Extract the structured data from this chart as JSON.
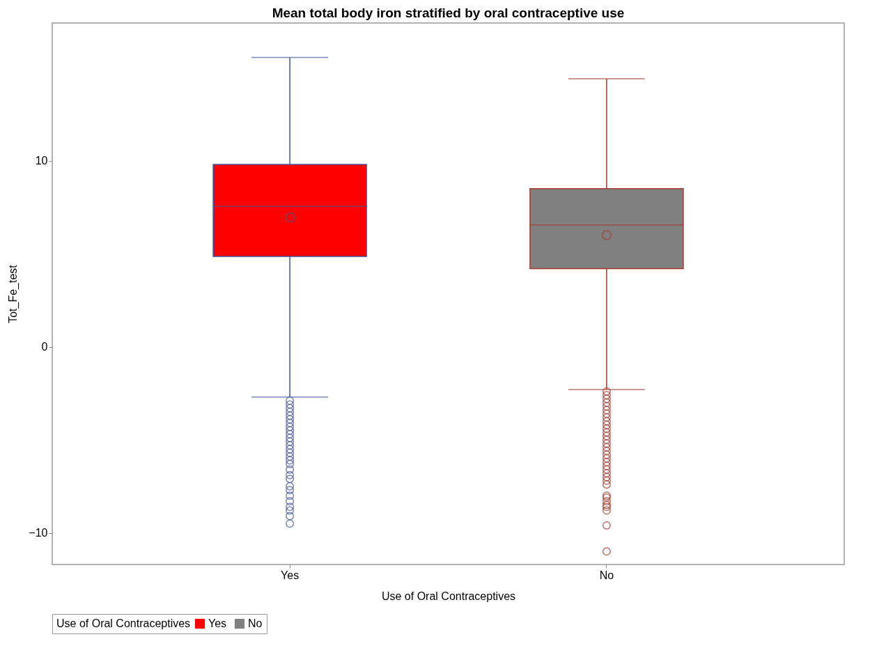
{
  "chart_data": {
    "type": "box",
    "title": "Mean total body iron stratified by oral contraceptive use",
    "xlabel": "Use of Oral Contraceptives",
    "ylabel": "Tot_Fe_test",
    "legend_title": "Use of Oral Contraceptives",
    "categories": [
      "Yes",
      "No"
    ],
    "series": [
      {
        "name": "Yes",
        "color": "#ff0000",
        "boxes": [
          {
            "low": -2.7,
            "q1": 4.85,
            "median": 7.55,
            "q3": 9.8,
            "high": 15.55,
            "mean": 6.95,
            "outliers": [
              -2.9,
              -3.1,
              -3.3,
              -3.5,
              -3.7,
              -3.9,
              -4.1,
              -4.3,
              -4.5,
              -4.7,
              -4.9,
              -5.1,
              -5.3,
              -5.5,
              -5.7,
              -5.9,
              -6.1,
              -6.3,
              -6.6,
              -6.9,
              -7.1,
              -7.5,
              -7.7,
              -8.0,
              -8.3,
              -8.6,
              -8.8,
              -9.1,
              -9.5
            ]
          },
          null
        ]
      },
      {
        "name": "No",
        "color": "#808080",
        "boxes": [
          null,
          {
            "low": -2.3,
            "q1": 4.2,
            "median": 6.55,
            "q3": 8.5,
            "high": 14.4,
            "mean": 6.0,
            "outliers": [
              -2.4,
              -2.6,
              -2.8,
              -3.0,
              -3.2,
              -3.4,
              -3.6,
              -3.8,
              -4.0,
              -4.2,
              -4.4,
              -4.6,
              -4.8,
              -5.0,
              -5.2,
              -5.4,
              -5.6,
              -5.8,
              -6.0,
              -6.2,
              -6.4,
              -6.6,
              -6.8,
              -7.0,
              -7.2,
              -7.4,
              -8.0,
              -8.1,
              -8.3,
              -8.5,
              -8.6,
              -8.8,
              -9.6,
              -11.0
            ]
          }
        ]
      }
    ],
    "ylim": [
      -11.7,
      17.4
    ],
    "yticks": [
      -10,
      0,
      10
    ],
    "grid": false,
    "legend": "bottom",
    "marker": "circle"
  }
}
